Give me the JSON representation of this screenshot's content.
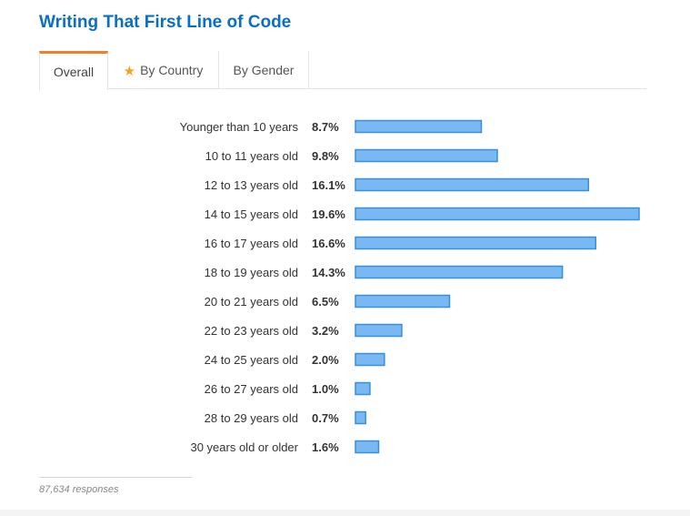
{
  "title": "Writing That First Line of Code",
  "tabs": [
    {
      "label": "Overall",
      "active": true,
      "icon": ""
    },
    {
      "label": "By Country",
      "active": false,
      "icon": "star-icon"
    },
    {
      "label": "By Gender",
      "active": false,
      "icon": ""
    }
  ],
  "colors": {
    "title": "#0a6fc2",
    "bar_fill": "#78b8f3",
    "bar_stroke": "#3b8fd6",
    "active_tab": "#f48024",
    "star": "#f7a21b"
  },
  "chart_data": {
    "type": "bar",
    "orientation": "horizontal",
    "title": "",
    "xlabel": "",
    "ylabel": "",
    "xlim": [
      0,
      19.6
    ],
    "grid": false,
    "categories": [
      "Younger than 10 years",
      "10 to 11 years old",
      "12 to 13 years old",
      "14 to 15 years old",
      "16 to 17 years old",
      "18 to 19 years old",
      "20 to 21 years old",
      "22 to 23 years old",
      "24 to 25 years old",
      "26 to 27 years old",
      "28 to 29 years old",
      "30 years old or older"
    ],
    "values": [
      8.7,
      9.8,
      16.1,
      19.6,
      16.6,
      14.3,
      6.5,
      3.2,
      2.0,
      1.0,
      0.7,
      1.6
    ],
    "value_labels": [
      "8.7%",
      "9.8%",
      "16.1%",
      "19.6%",
      "16.6%",
      "14.3%",
      "6.5%",
      "3.2%",
      "2.0%",
      "1.0%",
      "0.7%",
      "1.6%"
    ]
  },
  "footer": "87,634 responses"
}
